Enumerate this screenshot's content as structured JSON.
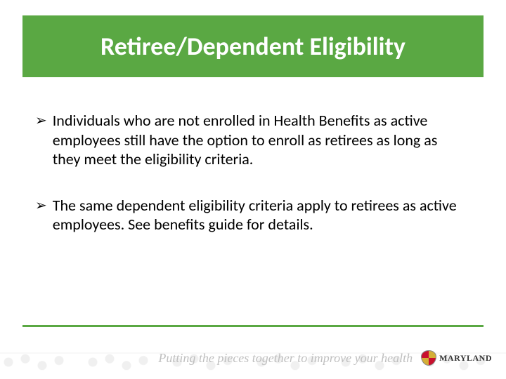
{
  "slide": {
    "title": "Retiree/Dependent Eligibility",
    "title_bg_color": "#5aa843",
    "title_text_color": "#ffffff",
    "title_fontsize": 36,
    "bullets": [
      "Individuals who are not enrolled in Health Benefits as active employees still have the option to enroll as retirees as long as they meet the eligibility criteria.",
      "The same dependent eligibility criteria apply to retirees as active employees.  See benefits guide for details."
    ],
    "bullet_marker": "➢",
    "bullet_fontsize": 22,
    "bullet_color": "#000000",
    "footer_line_color": "#5aa843",
    "tagline": "Putting the pieces together to improve your health",
    "logo_text": "MARYLAND",
    "background_color": "#ffffff"
  }
}
